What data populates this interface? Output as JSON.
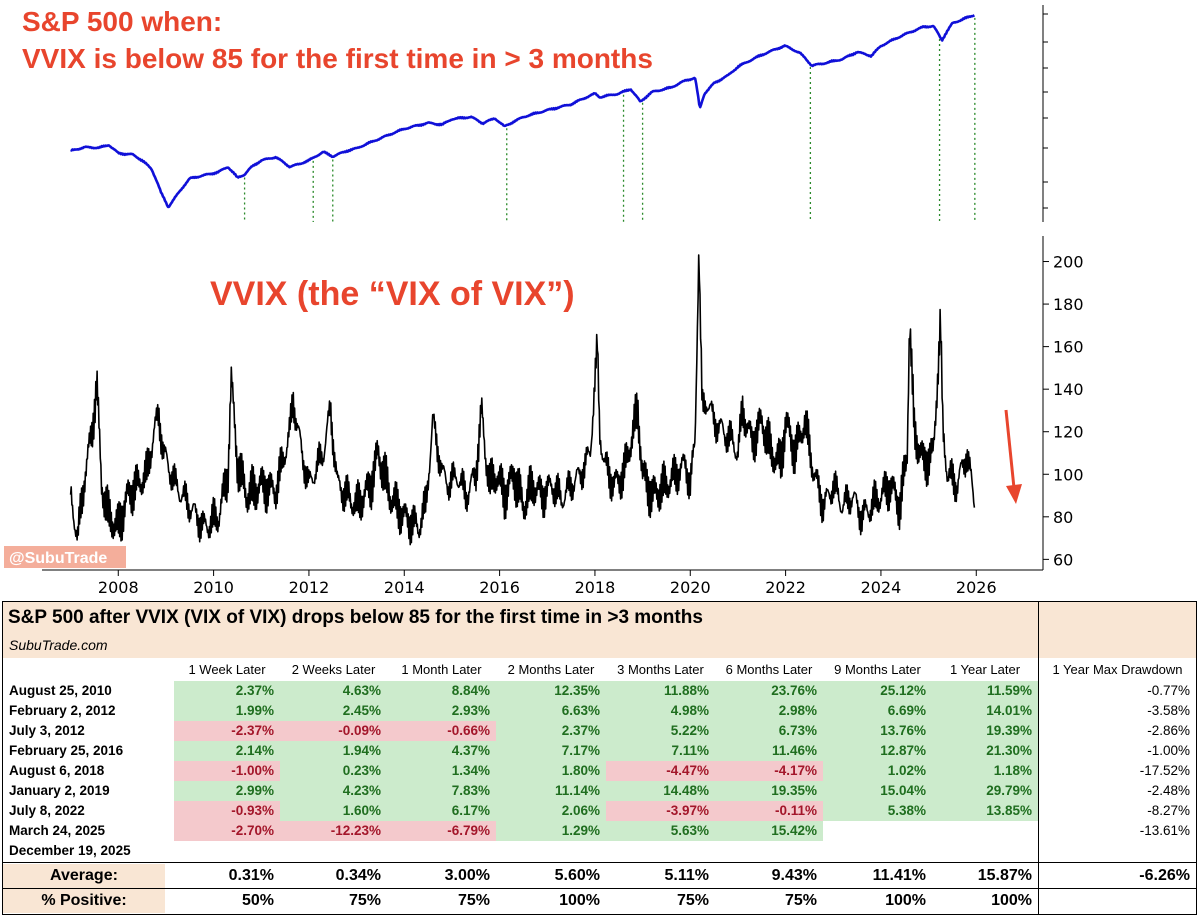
{
  "chart_data": [
    {
      "type": "line",
      "title_line1": "S&P 500 when:",
      "title_line2": "VVIX is below 85 for the first time in > 3 months",
      "series": [
        {
          "name": "S&P 500 (log)",
          "color": "#1010d8",
          "x": [
            2007.0,
            2007.3,
            2007.6,
            2007.8,
            2008.0,
            2008.3,
            2008.5,
            2008.7,
            2008.9,
            2009.05,
            2009.2,
            2009.5,
            2009.8,
            2010.1,
            2010.3,
            2010.5,
            2010.65,
            2010.8,
            2011.0,
            2011.3,
            2011.6,
            2011.8,
            2012.0,
            2012.3,
            2012.5,
            2012.8,
            2013.0,
            2013.5,
            2014.0,
            2014.5,
            2014.8,
            2015.0,
            2015.4,
            2015.65,
            2015.9,
            2016.1,
            2016.5,
            2017.0,
            2017.5,
            2018.0,
            2018.1,
            2018.5,
            2018.75,
            2018.95,
            2019.2,
            2019.6,
            2019.9,
            2020.1,
            2020.2,
            2020.3,
            2020.5,
            2020.8,
            2021.0,
            2021.5,
            2021.98,
            2022.3,
            2022.55,
            2022.8,
            2023.2,
            2023.5,
            2023.8,
            2024.0,
            2024.5,
            2024.9,
            2025.1,
            2025.28,
            2025.5,
            2025.8,
            2025.96
          ],
          "y": [
            1420,
            1480,
            1470,
            1520,
            1380,
            1360,
            1270,
            1150,
            870,
            740,
            830,
            1030,
            1070,
            1110,
            1180,
            1040,
            1080,
            1180,
            1270,
            1320,
            1180,
            1220,
            1270,
            1400,
            1330,
            1420,
            1460,
            1640,
            1830,
            1960,
            1920,
            2050,
            2100,
            1950,
            2070,
            1880,
            2100,
            2270,
            2430,
            2750,
            2640,
            2750,
            2900,
            2500,
            2800,
            2950,
            3200,
            3300,
            2300,
            2750,
            3100,
            3400,
            3750,
            4300,
            4780,
            4400,
            3800,
            3900,
            4100,
            4450,
            4250,
            4770,
            5450,
            5950,
            6000,
            5100,
            6200,
            6600,
            6830
          ]
        }
      ],
      "events_x": [
        2010.65,
        2012.09,
        2012.5,
        2016.15,
        2018.6,
        2019.0,
        2022.52,
        2025.23,
        2025.97
      ],
      "xlim": [
        2006.4,
        2027.4
      ]
    },
    {
      "type": "line",
      "title": "VVIX (the “VIX of VIX”)",
      "series": [
        {
          "name": "VVIX",
          "color": "#000000",
          "x": [
            2007.0,
            2007.15,
            2007.3,
            2007.45,
            2007.55,
            2007.65,
            2007.8,
            2008.0,
            2008.2,
            2008.4,
            2008.6,
            2008.75,
            2008.85,
            2008.95,
            2009.2,
            2009.5,
            2009.8,
            2010.1,
            2010.3,
            2010.37,
            2010.5,
            2010.7,
            2011.0,
            2011.3,
            2011.6,
            2011.67,
            2011.85,
            2012.0,
            2012.3,
            2012.45,
            2012.6,
            2012.8,
            2013.0,
            2013.3,
            2013.45,
            2013.7,
            2014.0,
            2014.3,
            2014.45,
            2014.6,
            2014.8,
            2014.95,
            2015.1,
            2015.3,
            2015.5,
            2015.62,
            2015.7,
            2015.8,
            2015.95,
            2016.1,
            2016.3,
            2016.5,
            2016.7,
            2016.9,
            2017.1,
            2017.3,
            2017.5,
            2017.7,
            2017.9,
            2018.05,
            2018.1,
            2018.2,
            2018.4,
            2018.6,
            2018.8,
            2018.9,
            2019.0,
            2019.2,
            2019.5,
            2019.7,
            2019.9,
            2020.0,
            2020.1,
            2020.18,
            2020.25,
            2020.35,
            2020.5,
            2020.7,
            2020.9,
            2021.0,
            2021.1,
            2021.3,
            2021.5,
            2021.7,
            2021.9,
            2022.0,
            2022.2,
            2022.4,
            2022.6,
            2022.8,
            2023.0,
            2023.2,
            2023.4,
            2023.6,
            2023.8,
            2024.0,
            2024.2,
            2024.4,
            2024.55,
            2024.6,
            2024.7,
            2024.9,
            2025.1,
            2025.25,
            2025.3,
            2025.4,
            2025.6,
            2025.8,
            2025.96
          ],
          "y": [
            90,
            70,
            100,
            120,
            143,
            95,
            80,
            75,
            90,
            95,
            100,
            120,
            128,
            110,
            95,
            85,
            75,
            80,
            100,
            145,
            105,
            90,
            95,
            92,
            120,
            135,
            110,
            95,
            110,
            130,
            95,
            90,
            85,
            95,
            110,
            90,
            80,
            75,
            85,
            125,
            100,
            95,
            100,
            90,
            100,
            130,
            110,
            95,
            100,
            90,
            100,
            85,
            95,
            90,
            95,
            88,
            95,
            100,
            110,
            160,
            120,
            105,
            95,
            100,
            120,
            130,
            100,
            90,
            95,
            100,
            105,
            95,
            115,
            207,
            130,
            135,
            125,
            120,
            115,
            110,
            130,
            115,
            125,
            110,
            105,
            125,
            110,
            125,
            100,
            85,
            95,
            85,
            90,
            80,
            85,
            90,
            95,
            85,
            110,
            173,
            120,
            105,
            110,
            171,
            120,
            100,
            95,
            110,
            88
          ]
        }
      ],
      "xticks": [
        2008,
        2010,
        2012,
        2014,
        2016,
        2018,
        2020,
        2022,
        2024,
        2026
      ],
      "xtick_labels": [
        "2008",
        "2010",
        "2012",
        "2014",
        "2016",
        "2018",
        "2020",
        "2022",
        "2024",
        "2026"
      ],
      "yticks": [
        60,
        80,
        100,
        120,
        140,
        160,
        180,
        200
      ],
      "ytick_labels": [
        "60",
        "80",
        "100",
        "120",
        "140",
        "160",
        "180",
        "200"
      ],
      "ylim": [
        55,
        212
      ],
      "xlim": [
        2006.4,
        2027.4
      ],
      "annotation": "down arrow (red) near end of series",
      "watermark": "@SubuTrade"
    },
    {
      "type": "table",
      "title": "S&P 500 after VVIX (VIX of VIX) drops below 85 for the first time in >3 months",
      "subtitle": "SubuTrade.com",
      "columns": [
        "1 Week Later",
        "2 Weeks Later",
        "1 Month Later",
        "2 Months Later",
        "3 Months Later",
        "6 Months Later",
        "9 Months Later",
        "1 Year Later",
        "1 Year Max Drawdown"
      ],
      "rows": [
        {
          "date": "August 25, 2010",
          "values": [
            "2.37%",
            "4.63%",
            "8.84%",
            "12.35%",
            "11.88%",
            "23.76%",
            "25.12%",
            "11.59%"
          ],
          "drawdown": "-0.77%"
        },
        {
          "date": "February 2, 2012",
          "values": [
            "1.99%",
            "2.45%",
            "2.93%",
            "6.63%",
            "4.98%",
            "2.98%",
            "6.69%",
            "14.01%"
          ],
          "drawdown": "-3.58%"
        },
        {
          "date": "July 3, 2012",
          "values": [
            "-2.37%",
            "-0.09%",
            "-0.66%",
            "2.37%",
            "5.22%",
            "6.73%",
            "13.76%",
            "19.39%"
          ],
          "drawdown": "-2.86%"
        },
        {
          "date": "February 25, 2016",
          "values": [
            "2.14%",
            "1.94%",
            "4.37%",
            "7.17%",
            "7.11%",
            "11.46%",
            "12.87%",
            "21.30%"
          ],
          "drawdown": "-1.00%"
        },
        {
          "date": "August 6, 2018",
          "values": [
            "-1.00%",
            "0.23%",
            "1.34%",
            "1.80%",
            "-4.47%",
            "-4.17%",
            "1.02%",
            "1.18%"
          ],
          "drawdown": "-17.52%"
        },
        {
          "date": "January 2, 2019",
          "values": [
            "2.99%",
            "4.23%",
            "7.83%",
            "11.14%",
            "14.48%",
            "19.35%",
            "15.04%",
            "29.79%"
          ],
          "drawdown": "-2.48%"
        },
        {
          "date": "July 8, 2022",
          "values": [
            "-0.93%",
            "1.60%",
            "6.17%",
            "2.06%",
            "-3.97%",
            "-0.11%",
            "5.38%",
            "13.85%"
          ],
          "drawdown": "-8.27%"
        },
        {
          "date": "March 24, 2025",
          "values": [
            "-2.70%",
            "-12.23%",
            "-6.79%",
            "1.29%",
            "5.63%",
            "15.42%",
            "",
            ""
          ],
          "drawdown": "-13.61%"
        },
        {
          "date": "December 19, 2025",
          "values": [
            "",
            "",
            "",
            "",
            "",
            "",
            "",
            ""
          ],
          "drawdown": ""
        }
      ],
      "average_label": "Average:",
      "average": [
        "0.31%",
        "0.34%",
        "3.00%",
        "5.60%",
        "5.11%",
        "9.43%",
        "11.41%",
        "15.87%"
      ],
      "average_drawdown": "-6.26%",
      "positive_label": "% Positive:",
      "positive": [
        "50%",
        "75%",
        "75%",
        "100%",
        "75%",
        "75%",
        "100%",
        "100%"
      ],
      "colors": {
        "positive_bg": "#ccebcc",
        "positive_text": "#1f6e1f",
        "negative_bg": "#f4c9cc",
        "negative_text": "#a3162a",
        "header_bg": "#f9e6d4"
      }
    }
  ]
}
